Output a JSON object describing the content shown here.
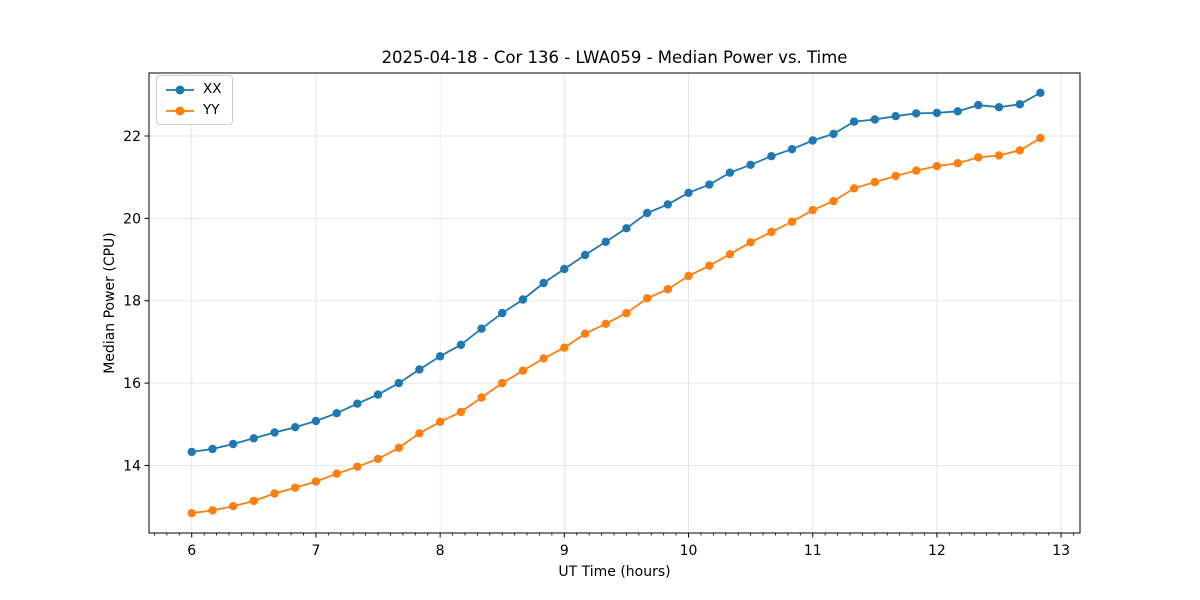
{
  "chart_data": {
    "type": "line",
    "title": "2025-04-18 - Cor 136 - LWA059 - Median Power vs. Time",
    "xlabel": "UT Time (hours)",
    "ylabel": "Median Power (CPU)",
    "x_ticks": [
      6,
      7,
      8,
      9,
      10,
      11,
      12,
      13
    ],
    "y_ticks": [
      14,
      16,
      18,
      20,
      22
    ],
    "x_minor_tick_step": 0.1,
    "xlim": [
      5.656,
      13.152
    ],
    "ylim": [
      12.36,
      23.53
    ],
    "grid": true,
    "legend_position": "upper left",
    "marker": "circle",
    "x": [
      6.0,
      6.167,
      6.333,
      6.5,
      6.667,
      6.833,
      7.0,
      7.167,
      7.333,
      7.5,
      7.667,
      7.833,
      8.0,
      8.167,
      8.333,
      8.5,
      8.667,
      8.833,
      9.0,
      9.167,
      9.333,
      9.5,
      9.667,
      9.833,
      10.0,
      10.167,
      10.333,
      10.5,
      10.667,
      10.833,
      11.0,
      11.167,
      11.333,
      11.5,
      11.667,
      11.833,
      12.0,
      12.167,
      12.333,
      12.5,
      12.667,
      12.833
    ],
    "series": [
      {
        "name": "XX",
        "color": "#1f77b4",
        "values": [
          14.33,
          14.4,
          14.52,
          14.66,
          14.8,
          14.93,
          15.08,
          15.27,
          15.5,
          15.72,
          16.0,
          16.33,
          16.65,
          16.93,
          17.32,
          17.7,
          18.03,
          18.43,
          18.77,
          19.11,
          19.43,
          19.76,
          20.13,
          20.34,
          20.62,
          20.82,
          21.11,
          21.3,
          21.51,
          21.68,
          21.89,
          22.05,
          22.35,
          22.4,
          22.48,
          22.55,
          22.56,
          22.6,
          22.75,
          22.7,
          22.77,
          23.05
        ]
      },
      {
        "name": "YY",
        "color": "#ff7f0e",
        "values": [
          12.84,
          12.91,
          13.01,
          13.14,
          13.32,
          13.46,
          13.61,
          13.8,
          13.97,
          14.16,
          14.43,
          14.78,
          15.06,
          15.3,
          15.65,
          16.0,
          16.3,
          16.6,
          16.86,
          17.2,
          17.44,
          17.7,
          18.06,
          18.28,
          18.6,
          18.85,
          19.13,
          19.42,
          19.67,
          19.92,
          20.2,
          20.42,
          20.73,
          20.88,
          21.03,
          21.16,
          21.27,
          21.34,
          21.48,
          21.53,
          21.65,
          21.95
        ]
      }
    ]
  },
  "style": {
    "grid_color": "#e6e6e6",
    "spine_color": "#000000",
    "tick_color": "#000000",
    "text_color": "#000000"
  }
}
